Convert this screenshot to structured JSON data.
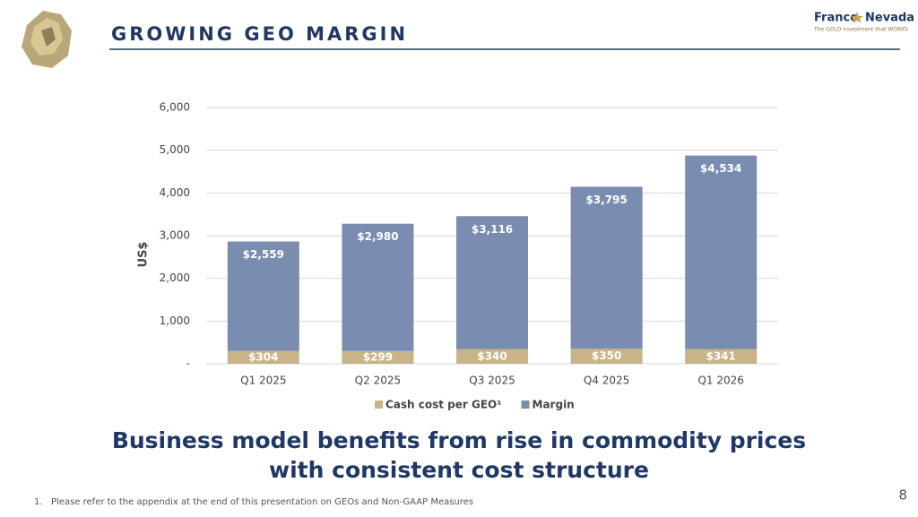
{
  "header": {
    "title": "GROWING GEO MARGIN",
    "logo": {
      "left": "Franco",
      "right": "Nevada",
      "tagline": "The GOLD Investment that WORKS"
    }
  },
  "chart_data": {
    "type": "stacked-bar",
    "y_label": "US$",
    "categories": [
      "Q1 2025",
      "Q2 2025",
      "Q3 2025",
      "Q4 2025",
      "Q1 2026"
    ],
    "series": [
      {
        "name": "Cash cost per GEO¹",
        "color": "#c8b488",
        "values": [
          304,
          299,
          340,
          350,
          341
        ],
        "value_labels": [
          "$304",
          "$299",
          "$340",
          "$350",
          "$341"
        ]
      },
      {
        "name": "Margin",
        "color": "#7a8cb0",
        "values": [
          2559,
          2980,
          3116,
          3795,
          4534
        ],
        "value_labels": [
          "$2,559",
          "$2,980",
          "$3,116",
          "$3,795",
          "$4,534"
        ]
      }
    ],
    "ylim": [
      0,
      6000
    ],
    "yticks": [
      {
        "value": 0,
        "label": "-"
      },
      {
        "value": 1000,
        "label": "1,000"
      },
      {
        "value": 2000,
        "label": "2,000"
      },
      {
        "value": 3000,
        "label": "3,000"
      },
      {
        "value": 4000,
        "label": "4,000"
      },
      {
        "value": 5000,
        "label": "5,000"
      },
      {
        "value": 6000,
        "label": "6,000"
      }
    ],
    "grid": true,
    "legend": "bottom"
  },
  "headline": [
    "Business model benefits from rise in commodity prices",
    "with consistent cost structure"
  ],
  "footnote": {
    "number": "1.",
    "text": "Please refer to the appendix at the end of this presentation on GEOs and Non-GAAP Measures"
  },
  "page_number": "8"
}
